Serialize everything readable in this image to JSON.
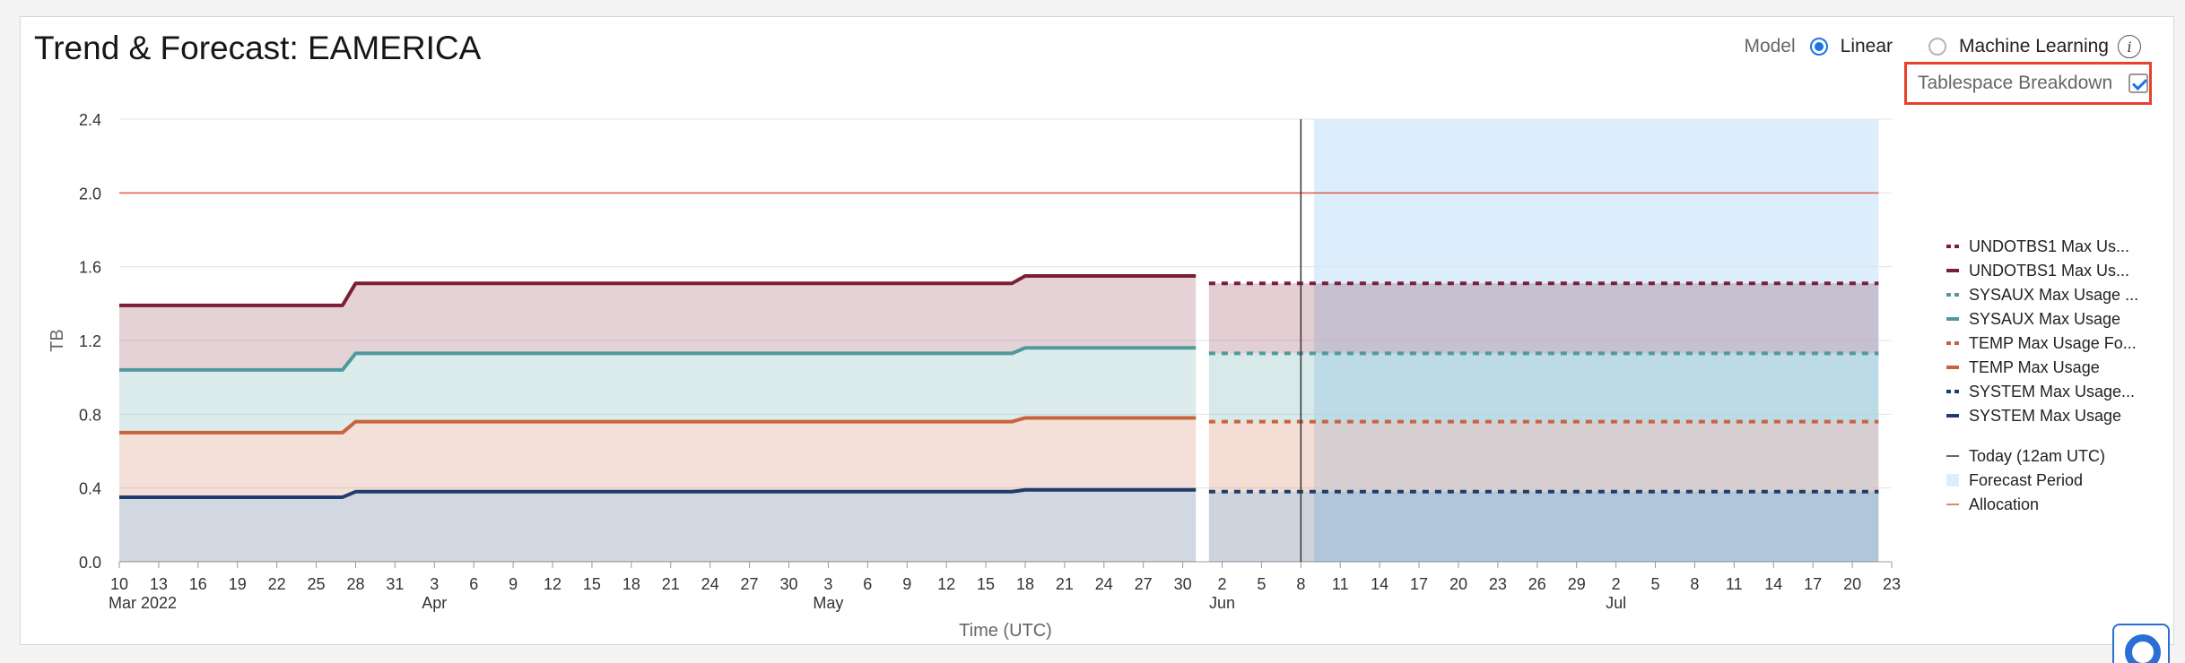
{
  "header": {
    "title": "Trend & Forecast: EAMERICA",
    "model_label": "Model",
    "model_options": [
      {
        "label": "Linear",
        "selected": true
      },
      {
        "label": "Machine Learning",
        "selected": false
      }
    ],
    "tablespace_breakdown_label": "Tablespace Breakdown",
    "tablespace_breakdown_checked": true
  },
  "colors": {
    "undotbs1": "#7a1f35",
    "sysaux": "#4e9a9c",
    "temp": "#c8643c",
    "system": "#1f3c6a",
    "allocation": "#e0574a",
    "forecast": "#dceefc",
    "today": "#333333"
  },
  "chart_data": {
    "type": "area",
    "xlabel": "Time (UTC)",
    "ylabel": "TB",
    "ylim": [
      0,
      2.4
    ],
    "yticks": [
      "0.0",
      "0.4",
      "0.8",
      "1.2",
      "1.6",
      "2.0",
      "2.4"
    ],
    "xlim": [
      "2022-03-10",
      "2022-07-23"
    ],
    "xticks": [
      {
        "date": "2022-03-10",
        "label": "10",
        "month": "Mar 2022"
      },
      {
        "date": "2022-03-13",
        "label": "13"
      },
      {
        "date": "2022-03-16",
        "label": "16"
      },
      {
        "date": "2022-03-19",
        "label": "19"
      },
      {
        "date": "2022-03-22",
        "label": "22"
      },
      {
        "date": "2022-03-25",
        "label": "25"
      },
      {
        "date": "2022-03-28",
        "label": "28"
      },
      {
        "date": "2022-03-31",
        "label": "31"
      },
      {
        "date": "2022-04-03",
        "label": "3",
        "month": "Apr"
      },
      {
        "date": "2022-04-06",
        "label": "6"
      },
      {
        "date": "2022-04-09",
        "label": "9"
      },
      {
        "date": "2022-04-12",
        "label": "12"
      },
      {
        "date": "2022-04-15",
        "label": "15"
      },
      {
        "date": "2022-04-18",
        "label": "18"
      },
      {
        "date": "2022-04-21",
        "label": "21"
      },
      {
        "date": "2022-04-24",
        "label": "24"
      },
      {
        "date": "2022-04-27",
        "label": "27"
      },
      {
        "date": "2022-04-30",
        "label": "30"
      },
      {
        "date": "2022-05-03",
        "label": "3",
        "month": "May"
      },
      {
        "date": "2022-05-06",
        "label": "6"
      },
      {
        "date": "2022-05-09",
        "label": "9"
      },
      {
        "date": "2022-05-12",
        "label": "12"
      },
      {
        "date": "2022-05-15",
        "label": "15"
      },
      {
        "date": "2022-05-18",
        "label": "18"
      },
      {
        "date": "2022-05-21",
        "label": "21"
      },
      {
        "date": "2022-05-24",
        "label": "24"
      },
      {
        "date": "2022-05-27",
        "label": "27"
      },
      {
        "date": "2022-05-30",
        "label": "30"
      },
      {
        "date": "2022-06-02",
        "label": "2",
        "month": "Jun"
      },
      {
        "date": "2022-06-05",
        "label": "5"
      },
      {
        "date": "2022-06-08",
        "label": "8"
      },
      {
        "date": "2022-06-11",
        "label": "11"
      },
      {
        "date": "2022-06-14",
        "label": "14"
      },
      {
        "date": "2022-06-17",
        "label": "17"
      },
      {
        "date": "2022-06-20",
        "label": "20"
      },
      {
        "date": "2022-06-23",
        "label": "23"
      },
      {
        "date": "2022-06-26",
        "label": "26"
      },
      {
        "date": "2022-06-29",
        "label": "29"
      },
      {
        "date": "2022-07-02",
        "label": "2",
        "month": "Jul"
      },
      {
        "date": "2022-07-05",
        "label": "5"
      },
      {
        "date": "2022-07-08",
        "label": "8"
      },
      {
        "date": "2022-07-11",
        "label": "11"
      },
      {
        "date": "2022-07-14",
        "label": "14"
      },
      {
        "date": "2022-07-17",
        "label": "17"
      },
      {
        "date": "2022-07-20",
        "label": "20"
      },
      {
        "date": "2022-07-23",
        "label": "23"
      }
    ],
    "stacked": true,
    "series": [
      {
        "key": "system",
        "name": "SYSTEM Max Usage",
        "kind": "actual",
        "x": [
          "2022-03-10",
          "2022-03-27",
          "2022-03-28",
          "2022-05-17",
          "2022-05-18",
          "2022-05-31"
        ],
        "y": [
          0.35,
          0.35,
          0.38,
          0.38,
          0.39,
          0.39
        ]
      },
      {
        "key": "temp",
        "name": "TEMP Max Usage",
        "kind": "actual",
        "x": [
          "2022-03-10",
          "2022-03-27",
          "2022-03-28",
          "2022-05-17",
          "2022-05-18",
          "2022-05-31"
        ],
        "y": [
          0.35,
          0.35,
          0.38,
          0.38,
          0.39,
          0.39
        ]
      },
      {
        "key": "sysaux",
        "name": "SYSAUX Max Usage",
        "kind": "actual",
        "x": [
          "2022-03-10",
          "2022-03-27",
          "2022-03-28",
          "2022-05-17",
          "2022-05-18",
          "2022-05-31"
        ],
        "y": [
          0.34,
          0.34,
          0.37,
          0.37,
          0.38,
          0.38
        ]
      },
      {
        "key": "undotbs1",
        "name": "UNDOTBS1 Max Usage",
        "kind": "actual",
        "x": [
          "2022-03-10",
          "2022-03-27",
          "2022-03-28",
          "2022-05-17",
          "2022-05-18",
          "2022-05-31"
        ],
        "y": [
          0.35,
          0.35,
          0.38,
          0.38,
          0.39,
          0.39
        ]
      },
      {
        "key": "system",
        "name": "SYSTEM Max Usage Forecast",
        "legend_label": "SYSTEM Max Usage...",
        "kind": "forecast",
        "x": [
          "2022-06-01",
          "2022-07-22"
        ],
        "y": [
          0.38,
          0.38
        ]
      },
      {
        "key": "temp",
        "name": "TEMP Max Usage Forecast",
        "legend_label": "TEMP Max Usage Fo...",
        "kind": "forecast",
        "x": [
          "2022-06-01",
          "2022-07-22"
        ],
        "y": [
          0.38,
          0.38
        ]
      },
      {
        "key": "sysaux",
        "name": "SYSAUX Max Usage Forecast",
        "legend_label": "SYSAUX Max Usage ...",
        "kind": "forecast",
        "x": [
          "2022-06-01",
          "2022-07-22"
        ],
        "y": [
          0.37,
          0.37
        ]
      },
      {
        "key": "undotbs1",
        "name": "UNDOTBS1 Max Usage Forecast",
        "legend_label": "UNDOTBS1 Max Us...",
        "kind": "forecast",
        "x": [
          "2022-06-01",
          "2022-07-22"
        ],
        "y": [
          0.38,
          0.38
        ]
      }
    ],
    "allocation": {
      "y": 2.0,
      "x": [
        "2022-03-10",
        "2022-07-22"
      ]
    },
    "today": "2022-06-08",
    "forecast_period": [
      "2022-06-09",
      "2022-07-22"
    ],
    "grid": true,
    "legend_position": "right",
    "legend": [
      {
        "label": "UNDOTBS1 Max Us...",
        "key": "undotbs1",
        "style": "dashed"
      },
      {
        "label": "UNDOTBS1 Max Us...",
        "key": "undotbs1",
        "style": "solid"
      },
      {
        "label": "SYSAUX Max Usage ...",
        "key": "sysaux",
        "style": "dashed"
      },
      {
        "label": "SYSAUX Max Usage",
        "key": "sysaux",
        "style": "solid"
      },
      {
        "label": "TEMP Max Usage Fo...",
        "key": "temp",
        "style": "dashed"
      },
      {
        "label": "TEMP Max Usage",
        "key": "temp",
        "style": "solid"
      },
      {
        "label": "SYSTEM Max Usage...",
        "key": "system",
        "style": "dashed"
      },
      {
        "label": "SYSTEM Max Usage",
        "key": "system",
        "style": "solid"
      },
      {
        "label": "Today (12am UTC)",
        "key": "today",
        "style": "thin"
      },
      {
        "label": "Forecast Period",
        "key": "forecast",
        "style": "box"
      },
      {
        "label": "Allocation",
        "key": "allocation",
        "style": "thin"
      }
    ]
  }
}
